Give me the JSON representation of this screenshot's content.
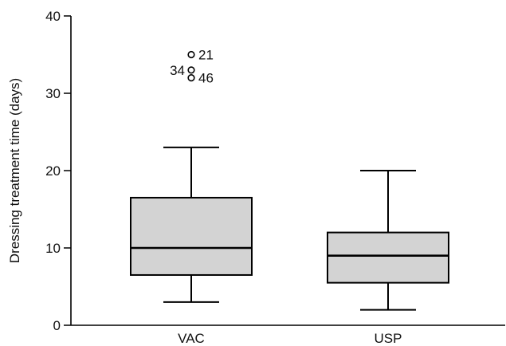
{
  "chart_data": {
    "type": "box",
    "title": "",
    "xlabel": "",
    "ylabel": "Dressing treatment time (days)",
    "ylim": [
      0,
      40
    ],
    "yticks": [
      0,
      10,
      20,
      30,
      40
    ],
    "categories": [
      "VAC",
      "USP"
    ],
    "boxes": [
      {
        "category": "VAC",
        "min": 3,
        "q1": 6.5,
        "median": 10,
        "q3": 16.5,
        "max": 23,
        "outliers": [
          {
            "value": 35,
            "label": "21"
          },
          {
            "value": 33,
            "label": "34"
          },
          {
            "value": 32,
            "label": "46"
          }
        ]
      },
      {
        "category": "USP",
        "min": 2,
        "q1": 5.5,
        "median": 9,
        "q3": 12,
        "max": 20,
        "outliers": []
      }
    ],
    "colors": {
      "box_fill": "#d3d3d3",
      "stroke": "#000000"
    },
    "grid": false,
    "legend": "none"
  }
}
